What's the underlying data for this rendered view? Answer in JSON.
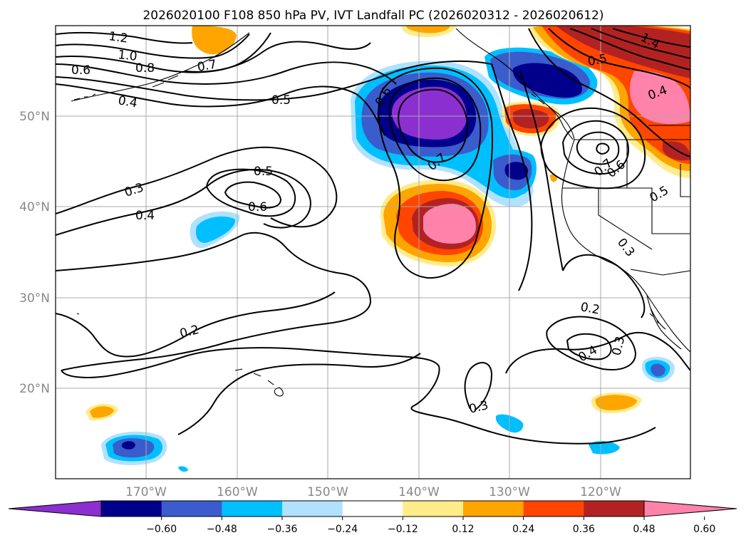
{
  "title": "2026020100 F108 850 hPa PV, IVT Landfall PC (2026020312 - 2026020612)",
  "lat_labels": [
    "50°N",
    "40°N",
    "30°N",
    "20°N"
  ],
  "lon_labels": [
    "170°W",
    "160°W",
    "150°W",
    "140°W",
    "130°W",
    "120°W"
  ],
  "contour_labels": [
    "1.2",
    "1.0",
    "0.8",
    "0.7",
    "0.6",
    "0.4",
    "0.5",
    "0.3",
    "0.4",
    "0.5",
    "0.6",
    "0.7",
    "0.6",
    "0.2",
    "0.3",
    "0.2",
    "0.3",
    "0.4",
    "0.3",
    "0.5",
    "0.4",
    "1.4",
    "0.7",
    "0.6",
    "0.5"
  ],
  "colorbar": {
    "ticks": [
      "−0.60",
      "−0.48",
      "−0.36",
      "−0.24",
      "−0.12",
      "0.12",
      "0.24",
      "0.36",
      "0.48",
      "0.60"
    ],
    "colors": [
      "#8b2fd0",
      "#00008b",
      "#3a5ccc",
      "#00bfff",
      "#b0e2ff",
      "#ffffff",
      "#ffec8b",
      "#ffa500",
      "#ff4500",
      "#b22222",
      "#ff82ab"
    ]
  },
  "palette": {
    "purple": "#8b2fd0",
    "navy": "#00008b",
    "royal": "#3a5ccc",
    "sky": "#00bfff",
    "pale_blue": "#b0e2ff",
    "pale_yellow": "#ffec8b",
    "orange": "#ffa500",
    "red_orange": "#ff4500",
    "firebrick": "#b22222",
    "pink": "#ff82ab"
  }
}
